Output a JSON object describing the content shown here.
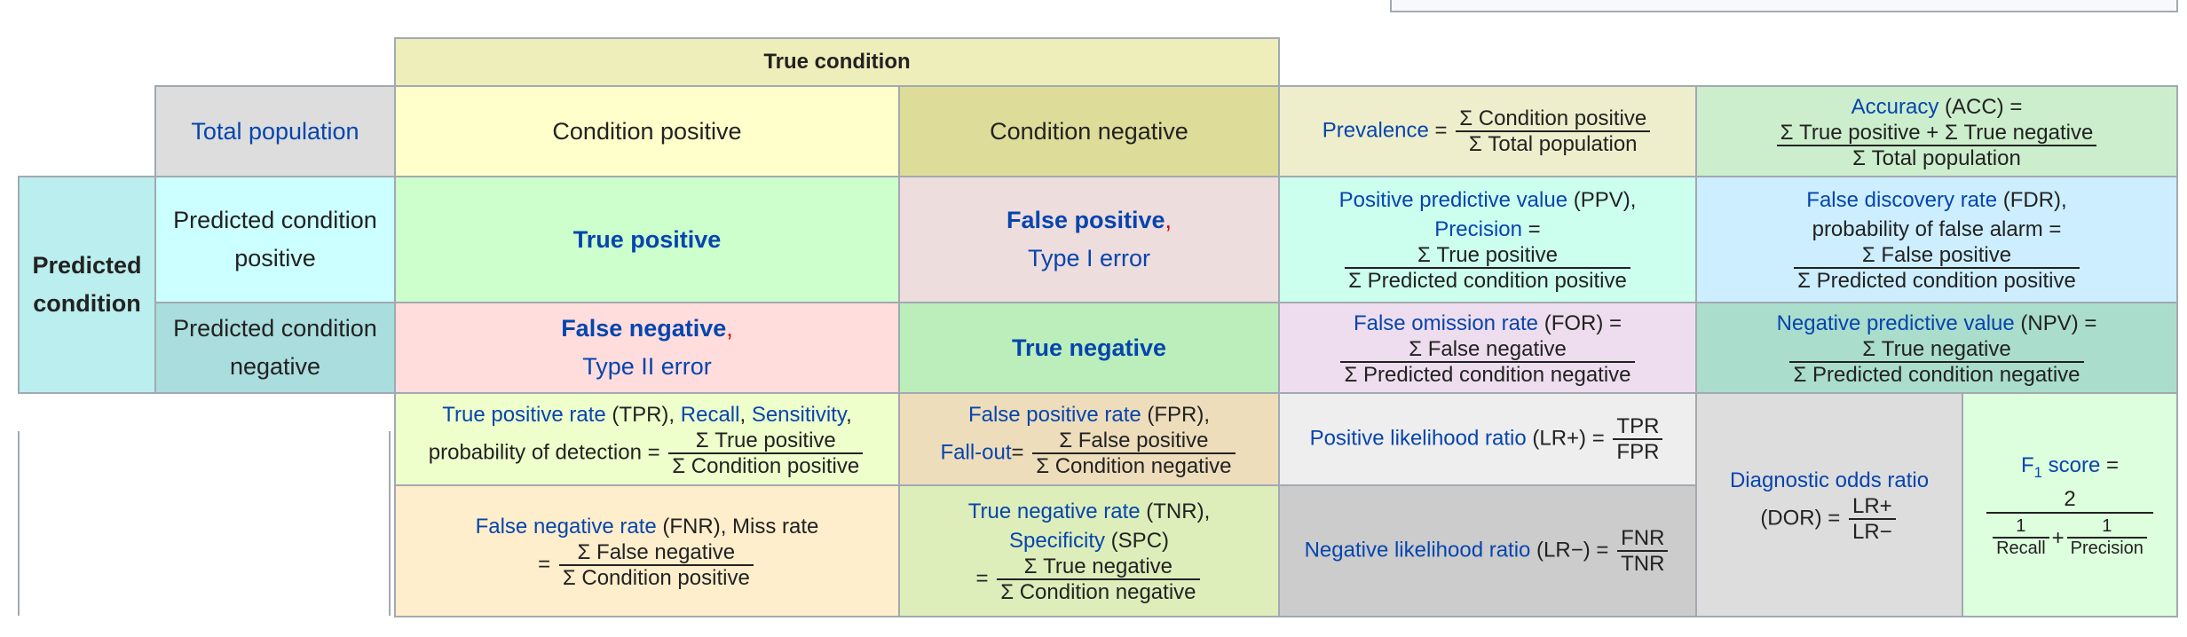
{
  "header": {
    "true_condition": "True condition",
    "predicted_condition": "Predicted condition"
  },
  "cells": {
    "total_population": "Total population",
    "condition_positive": "Condition positive",
    "condition_negative": "Condition negative",
    "predicted_condition_positive": [
      "Predicted condition",
      "positive"
    ],
    "predicted_condition_negative": [
      "Predicted condition",
      "negative"
    ],
    "true_positive": "True positive",
    "false_positive": "False positive",
    "type_i_error": "Type I error",
    "false_negative": "False negative",
    "type_ii_error": "Type II error",
    "true_negative": "True negative",
    "comma": ","
  },
  "metrics": {
    "prevalence": {
      "label": "Prevalence",
      "eq": "=",
      "num": "Σ Condition positive",
      "den": "Σ Total population"
    },
    "accuracy": {
      "label": "Accuracy",
      "abbr": " (ACC) =",
      "num": "Σ True positive + Σ True negative",
      "den": "Σ Total population"
    },
    "ppv": {
      "label": "Positive predictive value",
      "abbr": " (PPV),",
      "label2": "Precision",
      "eq": " =",
      "num": "Σ True positive",
      "den": "Σ Predicted condition positive"
    },
    "fdr": {
      "label": "False discovery rate",
      "abbr": " (FDR),",
      "line2": "probability of false alarm =",
      "num": "Σ False positive",
      "den": "Σ Predicted condition positive"
    },
    "for": {
      "label": "False omission rate",
      "abbr": " (FOR) =",
      "num": "Σ False negative",
      "den": "Σ Predicted condition negative"
    },
    "npv": {
      "label": "Negative predictive value",
      "abbr": " (NPV) =",
      "num": "Σ True negative",
      "den": "Σ Predicted condition negative"
    },
    "tpr": {
      "label": "True positive rate",
      "abbr": " (TPR), ",
      "label2": "Recall",
      "sep": ", ",
      "label3": "Sensitivity",
      "tail": ",",
      "line2": "probability of detection =",
      "num": "Σ True positive",
      "den": "Σ Condition positive"
    },
    "fpr": {
      "label": "False positive rate",
      "abbr": " (FPR),",
      "label2": "Fall-out",
      "eq": "=",
      "num": "Σ False positive",
      "den": "Σ Condition negative"
    },
    "fnr": {
      "label": "False negative rate",
      "abbr": " (FNR), Miss rate",
      "eq": "=",
      "num": "Σ False negative",
      "den": "Σ Condition positive"
    },
    "tnr": {
      "label": "True negative rate",
      "abbr": " (TNR),",
      "label2": "Specificity",
      "abbr2": " (SPC)",
      "eq": "=",
      "num": "Σ True negative",
      "den": "Σ Condition negative"
    },
    "lr_pos": {
      "label": "Positive likelihood ratio",
      "abbr": " (LR+) =",
      "num": "TPR",
      "den": "FPR"
    },
    "lr_neg": {
      "label": "Negative likelihood ratio",
      "abbr": " (LR−) =",
      "num": "FNR",
      "den": "TNR"
    },
    "dor": {
      "label": "Diagnostic odds ratio",
      "abbr": "(DOR) =",
      "num": "LR+",
      "den": "LR−"
    },
    "f1": {
      "label": "F",
      "sub": "1",
      "label_tail": " score",
      "eq": " =",
      "num": "2",
      "den_num1": "1",
      "den_den1": "Recall",
      "plus": "+",
      "den_num2": "1",
      "den_den2": "Precision"
    }
  },
  "colors": {
    "true_condition": "#eeeebb",
    "total_population": "#dddddd",
    "condition_positive": "#ffffcc",
    "condition_negative": "#dddd99",
    "predicted_condition": "#bbeeee",
    "predicted_positive": "#ccffff",
    "predicted_negative": "#aadddd",
    "true_positive": "#ccffcc",
    "false_positive": "#eedddd",
    "false_negative": "#ffdddd",
    "true_negative": "#bbeebb",
    "prevalence": "#eeeecc",
    "accuracy": "#cceecc",
    "ppv": "#ccffee",
    "fdr": "#cceeff",
    "for": "#eeddee",
    "npv": "#aaddcc",
    "tpr": "#eeffcc",
    "fpr": "#eeddbb",
    "fnr": "#ffeecc",
    "tnr": "#ddeebb",
    "lr_pos": "#eeeeee",
    "lr_neg": "#cccccc",
    "dor": "#dddddd",
    "f1": "#ddffdd",
    "link": "#0645ad",
    "border": "#a2a9b1"
  }
}
